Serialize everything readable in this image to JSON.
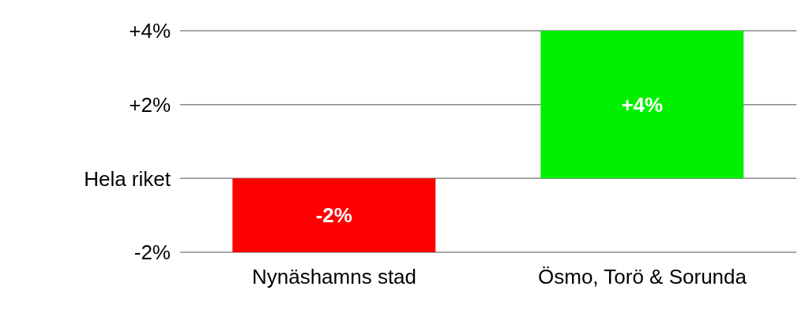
{
  "chart_data": {
    "type": "bar",
    "categories": [
      "Nynäshamns stad",
      "Ösmo, Torö & Sorunda"
    ],
    "values": [
      -2,
      4
    ],
    "colors": [
      "#ff0000",
      "#00f000"
    ],
    "value_labels": [
      "-2%",
      "+4%"
    ],
    "ylim": [
      -2,
      4
    ],
    "yticks": [
      {
        "value": -2,
        "label": "-2%"
      },
      {
        "value": 0,
        "label": "Hela riket"
      },
      {
        "value": 2,
        "label": "+2%"
      },
      {
        "value": 4,
        "label": "+4%"
      }
    ],
    "grid": "y"
  }
}
